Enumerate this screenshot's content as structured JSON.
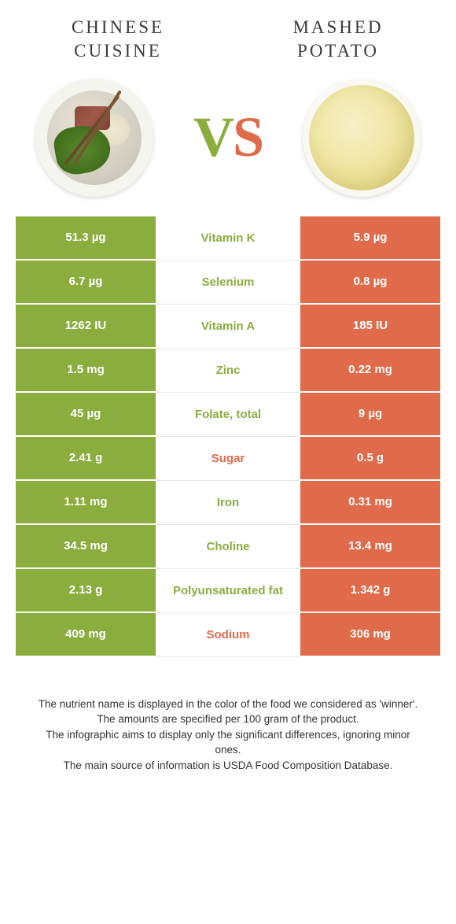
{
  "foodA": {
    "title": "Chinese cuisine",
    "color": "#8aad3e"
  },
  "foodB": {
    "title": "Mashed potato",
    "color": "#e06b4a"
  },
  "vs": "VS",
  "rows": [
    {
      "label": "Vitamin K",
      "a": "51.3 µg",
      "b": "5.9 µg",
      "winner": "a"
    },
    {
      "label": "Selenium",
      "a": "6.7 µg",
      "b": "0.8 µg",
      "winner": "a"
    },
    {
      "label": "Vitamin A",
      "a": "1262 IU",
      "b": "185 IU",
      "winner": "a"
    },
    {
      "label": "Zinc",
      "a": "1.5 mg",
      "b": "0.22 mg",
      "winner": "a"
    },
    {
      "label": "Folate, total",
      "a": "45 µg",
      "b": "9 µg",
      "winner": "a"
    },
    {
      "label": "Sugar",
      "a": "2.41 g",
      "b": "0.5 g",
      "winner": "b"
    },
    {
      "label": "Iron",
      "a": "1.11 mg",
      "b": "0.31 mg",
      "winner": "a"
    },
    {
      "label": "Choline",
      "a": "34.5 mg",
      "b": "13.4 mg",
      "winner": "a"
    },
    {
      "label": "Polyunsaturated fat",
      "a": "2.13 g",
      "b": "1.342 g",
      "winner": "a"
    },
    {
      "label": "Sodium",
      "a": "409 mg",
      "b": "306 mg",
      "winner": "b"
    }
  ],
  "footer": {
    "l1": "The nutrient name is displayed in the color of the food we considered as 'winner'.",
    "l2": "The amounts are specified per 100 gram of the product.",
    "l3": "The infographic aims to display only the significant differences, ignoring minor ones.",
    "l4": "The main source of information is USDA Food Composition Database."
  }
}
